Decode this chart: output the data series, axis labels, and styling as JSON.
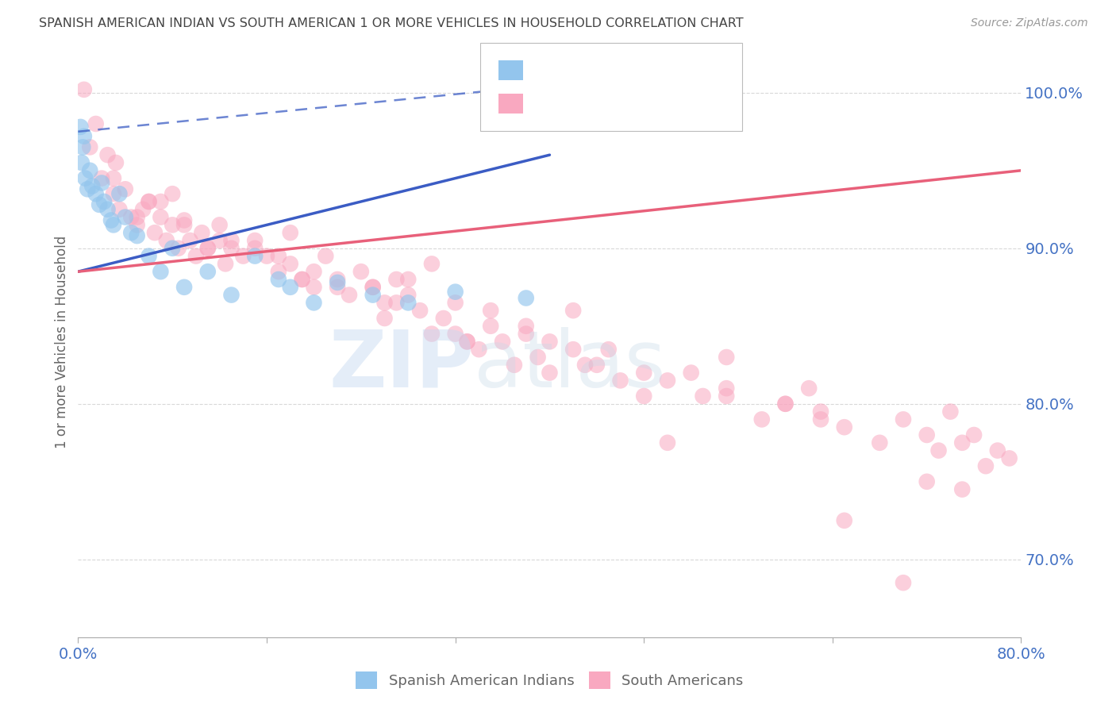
{
  "title": "SPANISH AMERICAN INDIAN VS SOUTH AMERICAN 1 OR MORE VEHICLES IN HOUSEHOLD CORRELATION CHART",
  "source": "Source: ZipAtlas.com",
  "ylabel": "1 or more Vehicles in Household",
  "blue_color": "#93C5ED",
  "pink_color": "#F9A8C0",
  "blue_line_color": "#3B5CC4",
  "pink_line_color": "#E8607A",
  "axis_label_color": "#4472C4",
  "grid_color": "#C8C8C8",
  "background_color": "#FFFFFF",
  "xlim": [
    0,
    80
  ],
  "ylim": [
    65,
    103
  ],
  "yticks": [
    70,
    80,
    90,
    100
  ],
  "ytick_labels": [
    "70.0%",
    "80.0%",
    "90.0%",
    "100.0%"
  ],
  "blue_x": [
    0.2,
    0.3,
    0.4,
    0.5,
    0.6,
    0.8,
    1.0,
    1.2,
    1.5,
    1.8,
    2.0,
    2.2,
    2.5,
    2.8,
    3.0,
    3.5,
    4.0,
    4.5,
    5.0,
    6.0,
    7.0,
    8.0,
    9.0,
    11.0,
    13.0,
    15.0,
    17.0,
    18.0,
    20.0,
    22.0,
    25.0,
    28.0,
    32.0,
    38.0
  ],
  "blue_y": [
    97.8,
    95.5,
    96.5,
    97.2,
    94.5,
    93.8,
    95.0,
    94.0,
    93.5,
    92.8,
    94.2,
    93.0,
    92.5,
    91.8,
    91.5,
    93.5,
    92.0,
    91.0,
    90.8,
    89.5,
    88.5,
    90.0,
    87.5,
    88.5,
    87.0,
    89.5,
    88.0,
    87.5,
    86.5,
    87.8,
    87.0,
    86.5,
    87.2,
    86.8
  ],
  "pink_x": [
    0.5,
    1.0,
    1.5,
    2.0,
    2.5,
    3.0,
    3.2,
    3.5,
    4.0,
    4.5,
    5.0,
    5.5,
    6.0,
    6.5,
    7.0,
    7.5,
    8.0,
    8.5,
    9.0,
    9.5,
    10.0,
    10.5,
    11.0,
    12.0,
    12.5,
    13.0,
    14.0,
    15.0,
    16.0,
    17.0,
    18.0,
    19.0,
    20.0,
    21.0,
    22.0,
    23.0,
    24.0,
    25.0,
    26.0,
    27.0,
    28.0,
    29.0,
    30.0,
    31.0,
    32.0,
    33.0,
    34.0,
    35.0,
    36.0,
    37.0,
    38.0,
    39.0,
    40.0,
    42.0,
    44.0,
    46.0,
    48.0,
    50.0,
    52.0,
    55.0,
    58.0,
    60.0,
    63.0,
    65.0,
    68.0,
    70.0,
    72.0,
    74.0,
    75.0,
    76.0,
    77.0,
    78.0,
    79.0,
    55.0,
    62.0,
    72.0,
    65.0,
    42.0,
    30.0,
    18.0,
    8.0,
    12.0,
    20.0,
    35.0,
    45.0,
    55.0,
    28.0,
    38.0,
    22.0,
    15.0,
    5.0,
    3.0,
    7.0,
    11.0,
    25.0,
    32.0,
    48.0,
    60.0,
    70.0,
    75.0,
    50.0,
    40.0,
    27.0,
    17.0,
    9.0,
    6.0,
    13.0,
    19.0,
    26.0,
    33.0,
    43.0,
    53.0,
    63.0,
    73.0
  ],
  "pink_y": [
    100.2,
    96.5,
    98.0,
    94.5,
    96.0,
    93.5,
    95.5,
    92.5,
    93.8,
    92.0,
    91.5,
    92.5,
    93.0,
    91.0,
    92.0,
    90.5,
    91.5,
    90.0,
    91.8,
    90.5,
    89.5,
    91.0,
    90.0,
    91.5,
    89.0,
    90.5,
    89.5,
    90.0,
    89.5,
    88.5,
    89.0,
    88.0,
    87.5,
    89.5,
    88.0,
    87.0,
    88.5,
    87.5,
    86.5,
    88.0,
    87.0,
    86.0,
    84.5,
    85.5,
    86.5,
    84.0,
    83.5,
    85.0,
    84.0,
    82.5,
    84.5,
    83.0,
    82.0,
    83.5,
    82.5,
    81.5,
    80.5,
    81.5,
    82.0,
    80.5,
    79.0,
    80.0,
    79.5,
    78.5,
    77.5,
    79.0,
    78.0,
    79.5,
    77.5,
    78.0,
    76.0,
    77.0,
    76.5,
    83.0,
    81.0,
    75.0,
    72.5,
    86.0,
    89.0,
    91.0,
    93.5,
    90.5,
    88.5,
    86.0,
    83.5,
    81.0,
    88.0,
    85.0,
    87.5,
    90.5,
    92.0,
    94.5,
    93.0,
    90.0,
    87.5,
    84.5,
    82.0,
    80.0,
    68.5,
    74.5,
    77.5,
    84.0,
    86.5,
    89.5,
    91.5,
    93.0,
    90.0,
    88.0,
    85.5,
    84.0,
    82.5,
    80.5,
    79.0,
    77.0
  ],
  "blue_trend_x0": 0,
  "blue_trend_x1": 40,
  "blue_trend_y0": 88.5,
  "blue_trend_y1": 96.0,
  "blue_dash_y0": 97.5,
  "blue_dash_y1": 100.5,
  "pink_trend_x0": 0,
  "pink_trend_x1": 80,
  "pink_trend_y0": 88.5,
  "pink_trend_y1": 95.0
}
